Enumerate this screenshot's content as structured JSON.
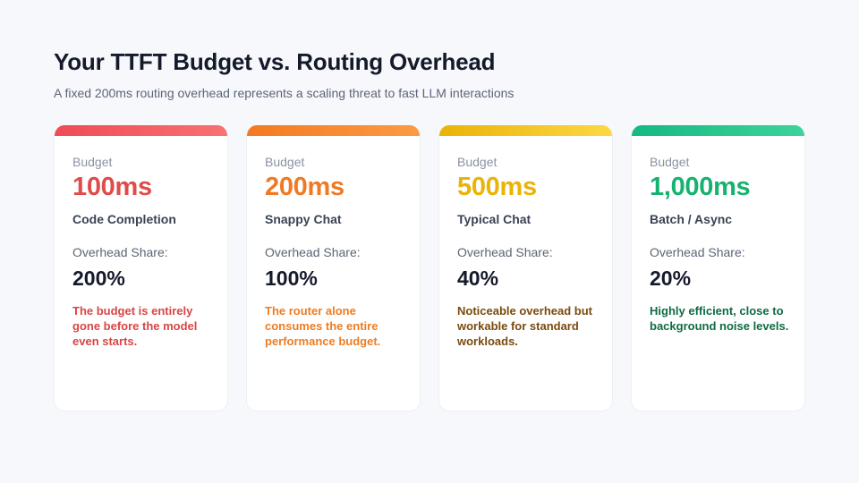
{
  "header": {
    "title": "Your TTFT Budget vs. Routing Overhead",
    "subtitle": "A fixed 200ms routing overhead represents a scaling threat to fast LLM interactions"
  },
  "cards": [
    {
      "budget_label": "Budget",
      "budget_value": "100ms",
      "use_case": "Code Completion",
      "overhead_label": "Overhead Share:",
      "overhead_value": "200%",
      "description": "The budget is entirely gone before the model even starts.",
      "accent_start": "#ef4c56",
      "accent_end": "#f87171",
      "value_color": "#e04b4b",
      "desc_color": "#d94545"
    },
    {
      "budget_label": "Budget",
      "budget_value": "200ms",
      "use_case": "Snappy Chat",
      "overhead_label": "Overhead Share:",
      "overhead_value": "100%",
      "description": "The router alone consumes the entire performance budget.",
      "accent_start": "#f47a20",
      "accent_end": "#fb9b45",
      "value_color": "#f07a24",
      "desc_color": "#ee7d23"
    },
    {
      "budget_label": "Budget",
      "budget_value": "500ms",
      "use_case": "Typical Chat",
      "overhead_label": "Overhead Share:",
      "overhead_value": "40%",
      "description": "Noticeable overhead but workable for standard workloads.",
      "accent_start": "#eab308",
      "accent_end": "#fbd844",
      "value_color": "#eab308",
      "desc_color": "#7a4b0e"
    },
    {
      "budget_label": "Budget",
      "budget_value": "1,000ms",
      "use_case": "Batch / Async",
      "overhead_label": "Overhead Share:",
      "overhead_value": "20%",
      "description": "Highly efficient, close to background noise levels.",
      "accent_start": "#16b981",
      "accent_end": "#3dd39b",
      "value_color": "#16b26f",
      "desc_color": "#0f6b44"
    }
  ]
}
